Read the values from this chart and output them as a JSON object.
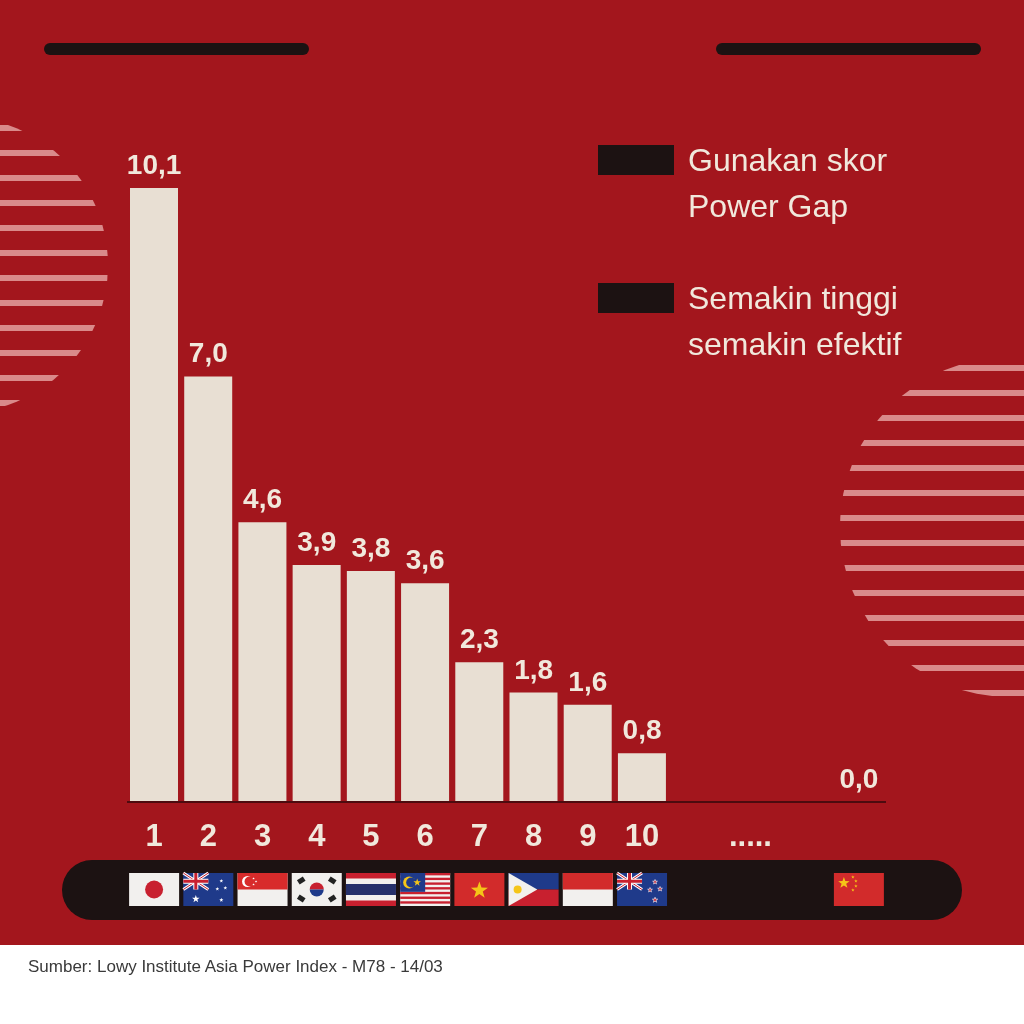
{
  "chart_data": {
    "type": "bar",
    "categories": [
      "1",
      "2",
      "3",
      "4",
      "5",
      "6",
      "7",
      "8",
      "9",
      "10",
      null,
      ".....",
      null,
      null
    ],
    "values": [
      10.1,
      7.0,
      4.6,
      3.9,
      3.8,
      3.6,
      2.3,
      1.8,
      1.6,
      0.8,
      null,
      null,
      null,
      0.0
    ],
    "value_labels": [
      "10,1",
      "7,0",
      "4,6",
      "3,9",
      "3,8",
      "3,6",
      "2,3",
      "1,8",
      "1,6",
      "0,8",
      null,
      null,
      null,
      "0,0"
    ],
    "color": "#e8dfd3",
    "tick_labels": "x",
    "annotations": [
      "Gunakan skor Power Gap",
      "Semakin tinggi semakin efektif",
      "Sumber: Lowy Institute Asia Power Index - M78 - 14/03"
    ]
  }
}
